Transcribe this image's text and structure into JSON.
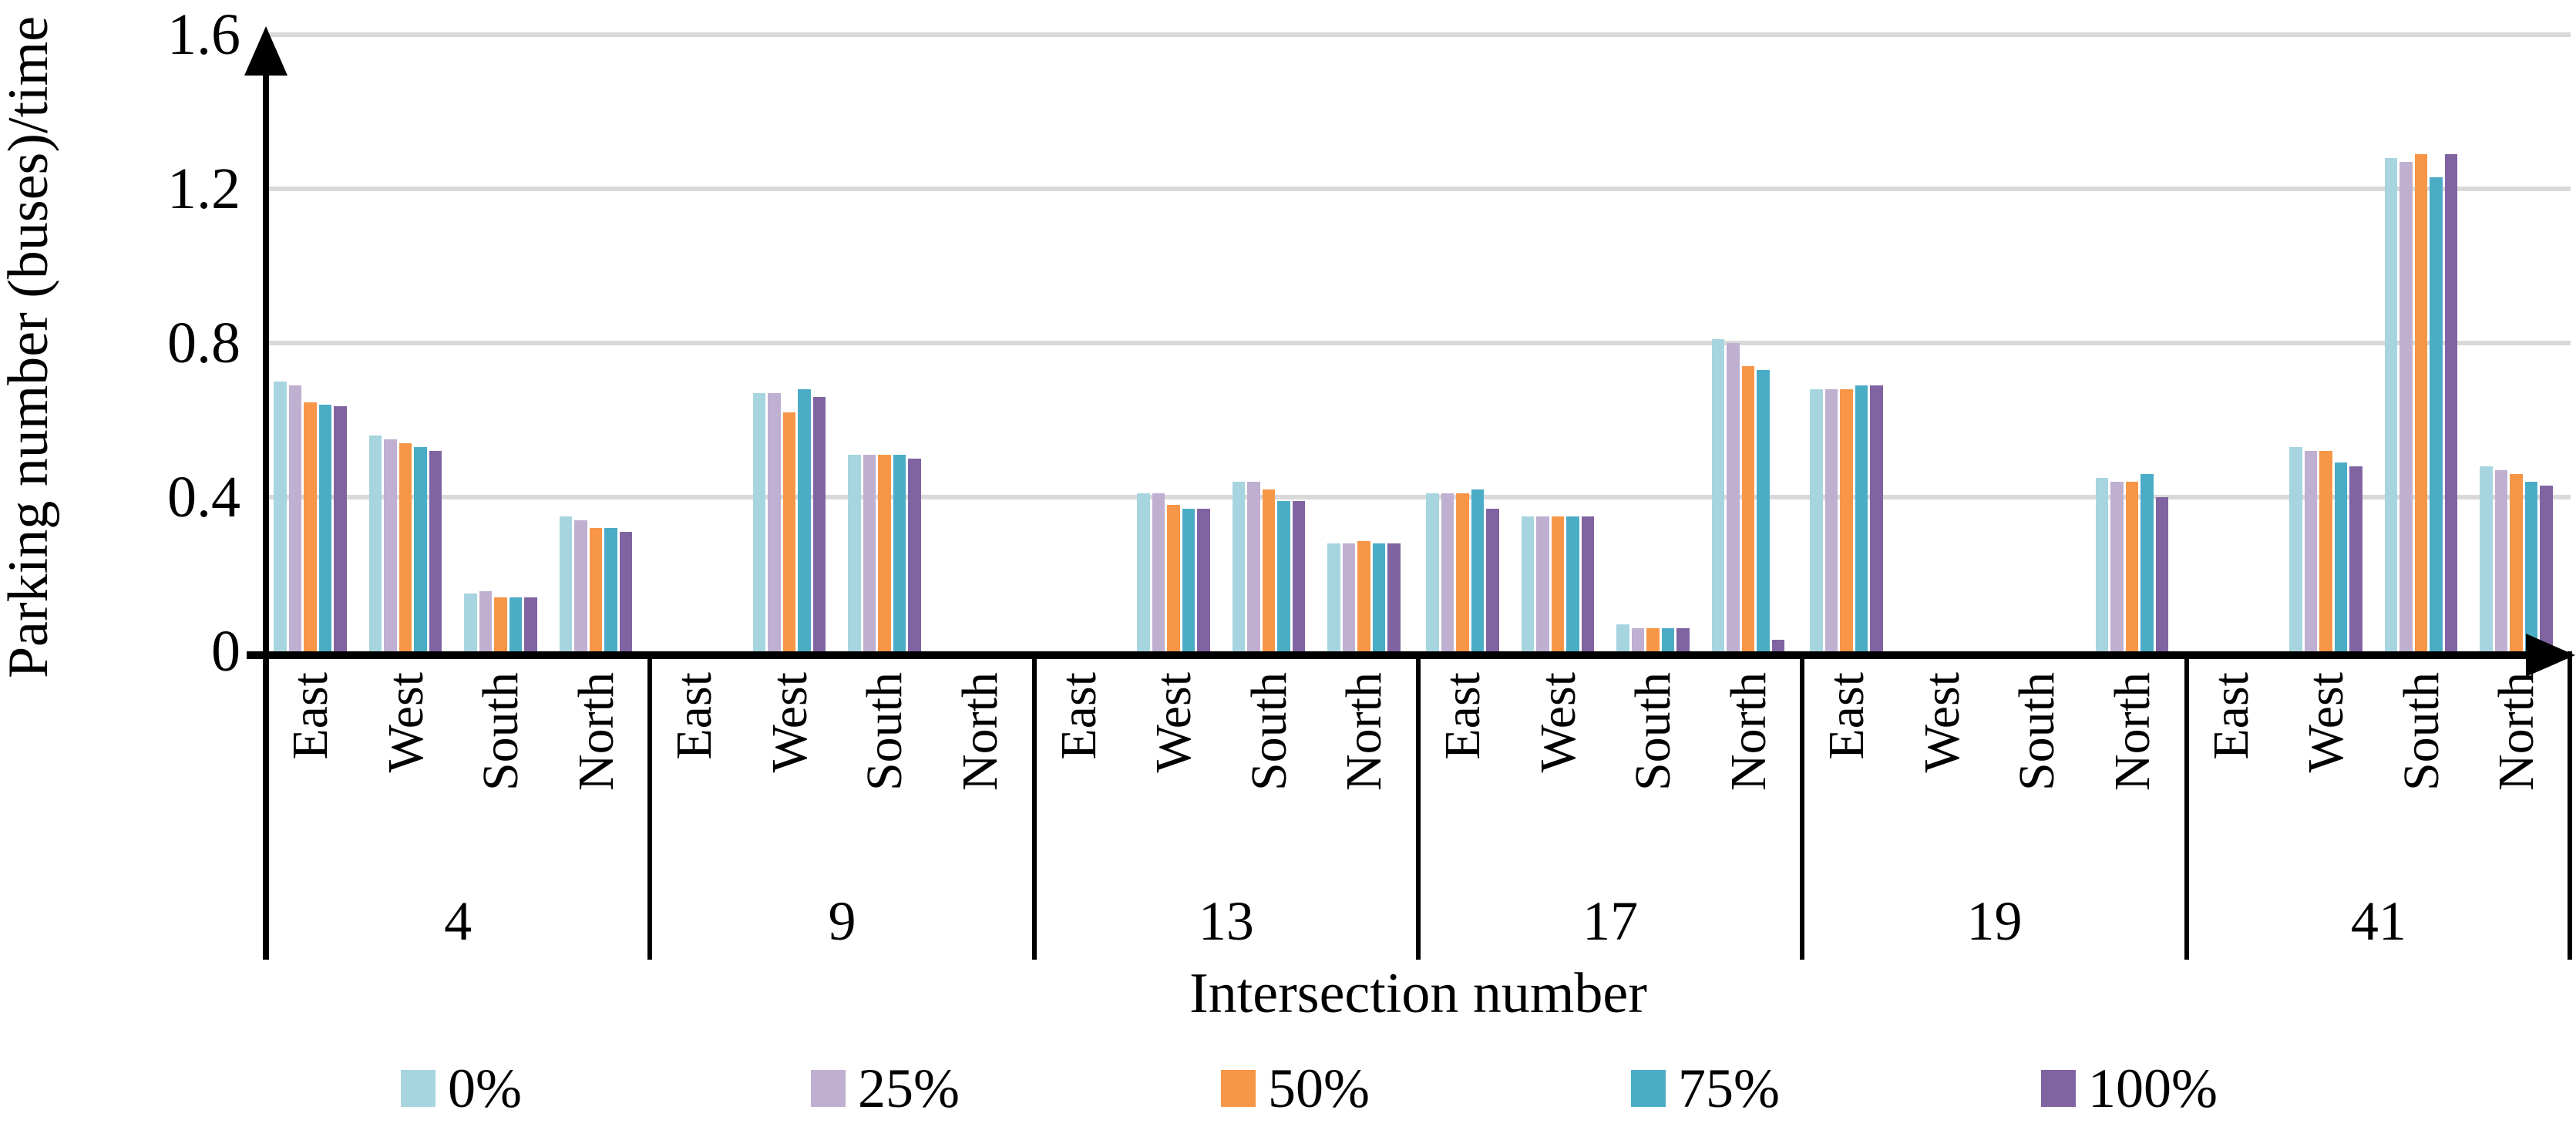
{
  "y_axis": {
    "title": "Parking number (buses)/time",
    "tick_labels": [
      "0",
      "0.4",
      "0.8",
      "1.2",
      "1.6"
    ],
    "tick_values": [
      0,
      0.4,
      0.8,
      1.2,
      1.6
    ],
    "max": 1.6
  },
  "x_axis": {
    "title": "Intersection number"
  },
  "legend": {
    "items": [
      {
        "label": "0%",
        "color": "#A6D5E0"
      },
      {
        "label": "25%",
        "color": "#BFAFD0"
      },
      {
        "label": "50%",
        "color": "#F79646"
      },
      {
        "label": "75%",
        "color": "#4BACC6"
      },
      {
        "label": "100%",
        "color": "#8064A2"
      }
    ]
  },
  "colors": {
    "gridline": "#D9D9D9",
    "axis": "#000000"
  },
  "chart_data": {
    "type": "bar",
    "title": "",
    "xlabel": "Intersection number",
    "ylabel": "Parking number (buses)/time",
    "ylim": [
      0,
      1.6
    ],
    "ytick_step": 0.4,
    "grid": true,
    "legend_position": "bottom",
    "categories": [
      "4",
      "9",
      "13",
      "17",
      "19",
      "41"
    ],
    "subcategories": [
      "East",
      "West",
      "South",
      "North"
    ],
    "series": [
      {
        "name": "0%",
        "color": "#A6D5E0",
        "values": [
          [
            0.7,
            0.56,
            0.15,
            0.35
          ],
          [
            0,
            0.67,
            0.51,
            0
          ],
          [
            0,
            0.41,
            0.44,
            0.28
          ],
          [
            0.41,
            0.35,
            0.07,
            0.81
          ],
          [
            0.68,
            0,
            0,
            0.45
          ],
          [
            0,
            0.53,
            1.28,
            0.48
          ]
        ]
      },
      {
        "name": "25%",
        "color": "#BFAFD0",
        "values": [
          [
            0.69,
            0.55,
            0.155,
            0.34
          ],
          [
            0,
            0.67,
            0.51,
            0
          ],
          [
            0,
            0.41,
            0.44,
            0.28
          ],
          [
            0.41,
            0.35,
            0.06,
            0.8
          ],
          [
            0.68,
            0,
            0,
            0.44
          ],
          [
            0,
            0.52,
            1.27,
            0.47
          ]
        ]
      },
      {
        "name": "50%",
        "color": "#F79646",
        "values": [
          [
            0.645,
            0.54,
            0.14,
            0.32
          ],
          [
            0,
            0.62,
            0.51,
            0
          ],
          [
            0,
            0.38,
            0.42,
            0.285
          ],
          [
            0.41,
            0.35,
            0.06,
            0.74
          ],
          [
            0.68,
            0,
            0,
            0.44
          ],
          [
            0,
            0.52,
            1.29,
            0.46
          ]
        ]
      },
      {
        "name": "75%",
        "color": "#4BACC6",
        "values": [
          [
            0.64,
            0.53,
            0.14,
            0.32
          ],
          [
            0,
            0.68,
            0.51,
            0
          ],
          [
            0,
            0.37,
            0.39,
            0.28
          ],
          [
            0.42,
            0.35,
            0.06,
            0.73
          ],
          [
            0.69,
            0,
            0,
            0.46
          ],
          [
            0,
            0.49,
            1.23,
            0.44
          ]
        ]
      },
      {
        "name": "100%",
        "color": "#8064A2",
        "values": [
          [
            0.635,
            0.52,
            0.14,
            0.31
          ],
          [
            0,
            0.66,
            0.5,
            0
          ],
          [
            0,
            0.37,
            0.39,
            0.28
          ],
          [
            0.37,
            0.35,
            0.06,
            0.03
          ],
          [
            0.69,
            0,
            0,
            0.4
          ],
          [
            0,
            0.48,
            1.29,
            0.43
          ]
        ]
      }
    ]
  }
}
